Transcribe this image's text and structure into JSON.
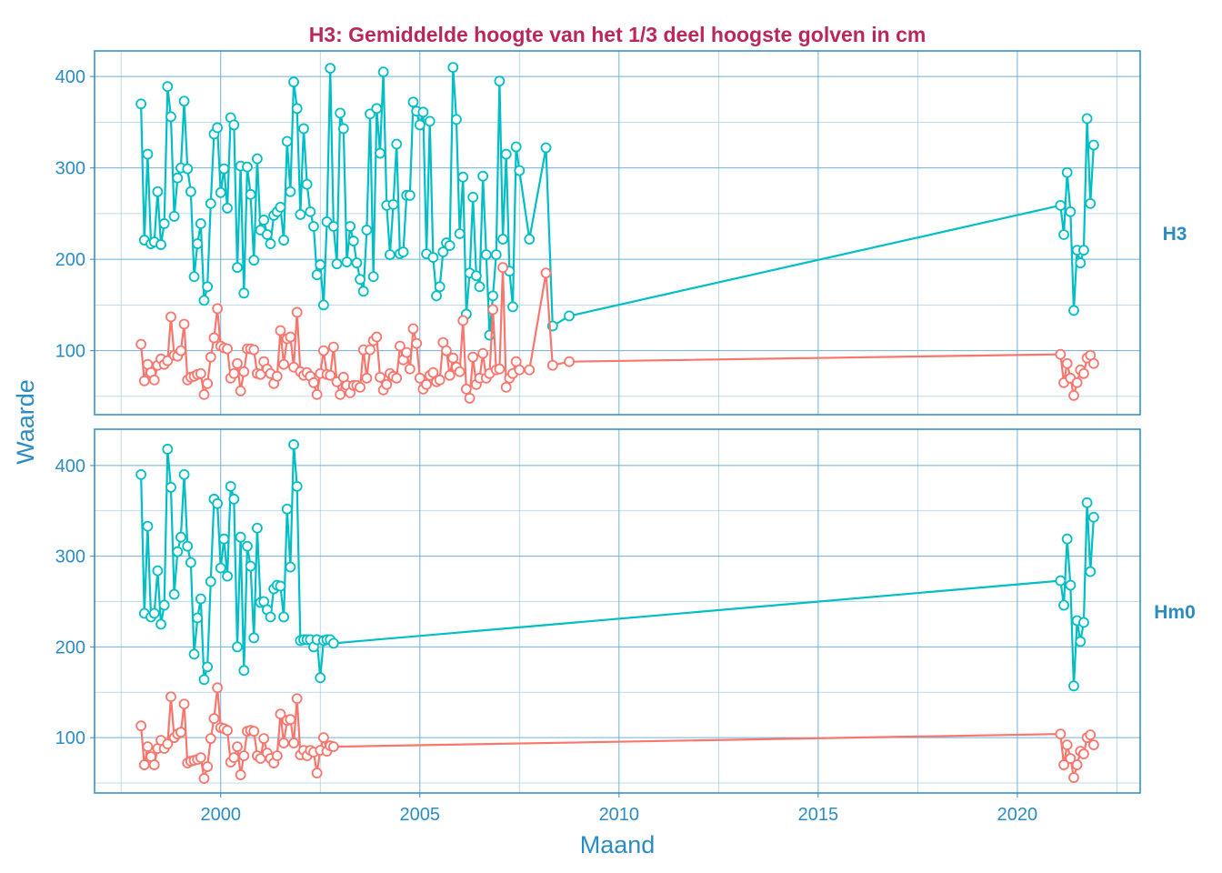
{
  "chart_data": {
    "type": "line",
    "title": "H3: Gemiddelde hoogte van het 1/3 deel hoogste golven in cm",
    "xlabel": "Maand",
    "ylabel": "Waarde",
    "xlim": [
      "1996-11",
      "2023-02"
    ],
    "x_ticks": [
      "2000",
      "2005",
      "2010",
      "2015",
      "2020"
    ],
    "grid": true,
    "legend": "none",
    "colors": {
      "series_upper": "#00bfc4",
      "series_lower": "#f8766d",
      "axis": "#2b8cc4",
      "title": "#b8285a"
    },
    "panels": [
      {
        "label": "H3",
        "ylim": [
          30,
          428
        ],
        "y_ticks": [
          100,
          200,
          300,
          400
        ],
        "x": [
          "1998-01",
          "1998-02",
          "1998-03",
          "1998-04",
          "1998-05",
          "1998-06",
          "1998-07",
          "1998-08",
          "1998-09",
          "1998-10",
          "1998-11",
          "1998-12",
          "1999-01",
          "1999-02",
          "1999-03",
          "1999-04",
          "1999-05",
          "1999-06",
          "1999-07",
          "1999-08",
          "1999-09",
          "1999-10",
          "1999-11",
          "1999-12",
          "2000-01",
          "2000-02",
          "2000-03",
          "2000-04",
          "2000-05",
          "2000-06",
          "2000-07",
          "2000-08",
          "2000-09",
          "2000-10",
          "2000-11",
          "2000-12",
          "2001-01",
          "2001-02",
          "2001-03",
          "2001-04",
          "2001-05",
          "2001-06",
          "2001-07",
          "2001-08",
          "2001-09",
          "2001-10",
          "2001-11",
          "2001-12",
          "2002-01",
          "2002-02",
          "2002-03",
          "2002-04",
          "2002-05",
          "2002-06",
          "2002-07",
          "2002-08",
          "2002-09",
          "2002-10",
          "2002-11",
          "2002-12",
          "2003-01",
          "2003-02",
          "2003-03",
          "2003-04",
          "2003-05",
          "2003-06",
          "2003-07",
          "2003-08",
          "2003-09",
          "2003-10",
          "2003-11",
          "2003-12",
          "2004-01",
          "2004-02",
          "2004-03",
          "2004-04",
          "2004-05",
          "2004-06",
          "2004-07",
          "2004-08",
          "2004-09",
          "2004-10",
          "2004-11",
          "2004-12",
          "2005-01",
          "2005-02",
          "2005-03",
          "2005-04",
          "2005-05",
          "2005-06",
          "2005-07",
          "2005-08",
          "2005-09",
          "2005-10",
          "2005-11",
          "2005-12",
          "2006-01",
          "2006-02",
          "2006-03",
          "2006-04",
          "2006-05",
          "2006-06",
          "2006-07",
          "2006-08",
          "2006-09",
          "2006-10",
          "2006-11",
          "2006-12",
          "2007-01",
          "2007-02",
          "2007-03",
          "2007-04",
          "2007-05",
          "2007-06",
          "2007-07",
          "2007-10",
          "2008-03",
          "2008-05",
          "2008-10",
          "2021-02",
          "2021-03",
          "2021-04",
          "2021-05",
          "2021-06",
          "2021-07",
          "2021-08",
          "2021-09",
          "2021-10",
          "2021-11",
          "2021-12"
        ],
        "series": [
          {
            "values": [
              370,
              221,
              315,
              217,
              219,
              274,
              216,
              239,
              389,
              356,
              247,
              289,
              300,
              373,
              299,
              274,
              181,
              217,
              239,
              155,
              170,
              261,
              337,
              344,
              273,
              299,
              256,
              355,
              347,
              191,
              302,
              163,
              301,
              271,
              199,
              310,
              232,
              243,
              227,
              217,
              248,
              252,
              257,
              221,
              329,
              274,
              394,
              365,
              249,
              343,
              282,
              252,
              236,
              183,
              194,
              150,
              241,
              409,
              236,
              195,
              360,
              343,
              197,
              236,
              220,
              196,
              178,
              165,
              232,
              359,
              181,
              365,
              316,
              405,
              259,
              205,
              260,
              326,
              206,
              208,
              270,
              270,
              372,
              362,
              347,
              361,
              206,
              351,
              202,
              160,
              170,
              208,
              218,
              215,
              410,
              353,
              228,
              290,
              140,
              185,
              268,
              182,
              170,
              291,
              205,
              117,
              160,
              205,
              395,
              222,
              315,
              187,
              148,
              323,
              297,
              222,
              322,
              127,
              138,
              259,
              227,
              295,
              252,
              144,
              210,
              196,
              210,
              354,
              261,
              325
            ]
          },
          {
            "values": [
              107,
              67,
              85,
              76,
              68,
              84,
              91,
              85,
              89,
              137,
              95,
              94,
              100,
              129,
              68,
              71,
              72,
              74,
              75,
              52,
              64,
              93,
              114,
              146,
              105,
              103,
              102,
              70,
              75,
              86,
              56,
              77,
              102,
              102,
              101,
              75,
              74,
              88,
              80,
              75,
              64,
              72,
              122,
              85,
              113,
              115,
              82,
              142,
              77,
              73,
              76,
              72,
              65,
              52,
              75,
              100,
              74,
              73,
              104,
              66,
              52,
              71,
              62,
              54,
              62,
              62,
              60,
              101,
              70,
              101,
              111,
              115,
              71,
              57,
              63,
              75,
              72,
              70,
              105,
              90,
              98,
              80,
              124,
              108,
              70,
              58,
              63,
              73,
              76,
              66,
              68,
              109,
              100,
              73,
              92,
              82,
              77,
              133,
              58,
              48,
              93,
              63,
              70,
              97,
              70,
              75,
              145,
              79,
              80,
              191,
              60,
              70,
              75,
              88,
              79,
              79,
              185,
              84,
              88,
              96,
              65,
              86,
              70,
              51,
              65,
              79,
              75,
              92,
              95,
              86
            ]
          }
        ]
      },
      {
        "label": "Hm0",
        "ylim": [
          39,
          440
        ],
        "y_ticks": [
          100,
          200,
          300,
          400
        ],
        "x": [
          "1998-01",
          "1998-02",
          "1998-03",
          "1998-04",
          "1998-05",
          "1998-06",
          "1998-07",
          "1998-08",
          "1998-09",
          "1998-10",
          "1998-11",
          "1998-12",
          "1999-01",
          "1999-02",
          "1999-03",
          "1999-04",
          "1999-05",
          "1999-06",
          "1999-07",
          "1999-08",
          "1999-09",
          "1999-10",
          "1999-11",
          "1999-12",
          "2000-01",
          "2000-02",
          "2000-03",
          "2000-04",
          "2000-05",
          "2000-06",
          "2000-07",
          "2000-08",
          "2000-09",
          "2000-10",
          "2000-11",
          "2000-12",
          "2001-01",
          "2001-02",
          "2001-03",
          "2001-04",
          "2001-05",
          "2001-06",
          "2001-07",
          "2001-08",
          "2001-09",
          "2001-10",
          "2001-11",
          "2001-12",
          "2002-01",
          "2002-02",
          "2002-03",
          "2002-04",
          "2002-05",
          "2002-06",
          "2002-07",
          "2002-08",
          "2002-09",
          "2002-10",
          "2002-11",
          "2021-02",
          "2021-03",
          "2021-04",
          "2021-05",
          "2021-06",
          "2021-07",
          "2021-08",
          "2021-09",
          "2021-10",
          "2021-11",
          "2021-12"
        ],
        "series": [
          {
            "values": [
              390,
              237,
              333,
              233,
              237,
              284,
              225,
              246,
              418,
              376,
              258,
              305,
              321,
              390,
              311,
              293,
              192,
              232,
              253,
              164,
              178,
              272,
              363,
              358,
              287,
              319,
              278,
              377,
              363,
              200,
              321,
              174,
              311,
              289,
              210,
              331,
              249,
              250,
              241,
              233,
              264,
              268,
              267,
              233,
              352,
              288,
              423,
              377,
              207,
              208,
              208,
              208,
              200,
              208,
              166,
              207,
              208,
              208,
              204,
              273,
              246,
              319,
              268,
              157,
              229,
              206,
              227,
              359,
              283,
              343
            ]
          },
          {
            "values": [
              113,
              70,
              90,
              79,
              70,
              88,
              97,
              88,
              93,
              145,
              100,
              104,
              106,
              137,
              72,
              74,
              75,
              76,
              78,
              55,
              68,
              99,
              121,
              155,
              111,
              110,
              108,
              73,
              78,
              90,
              59,
              80,
              107,
              108,
              107,
              80,
              77,
              99,
              83,
              77,
              72,
              80,
              126,
              94,
              119,
              120,
              94,
              143,
              81,
              86,
              80,
              86,
              84,
              61,
              86,
              100,
              85,
              91,
              90,
              104,
              70,
              92,
              77,
              56,
              70,
              85,
              82,
              100,
              103,
              92
            ]
          }
        ]
      }
    ]
  }
}
